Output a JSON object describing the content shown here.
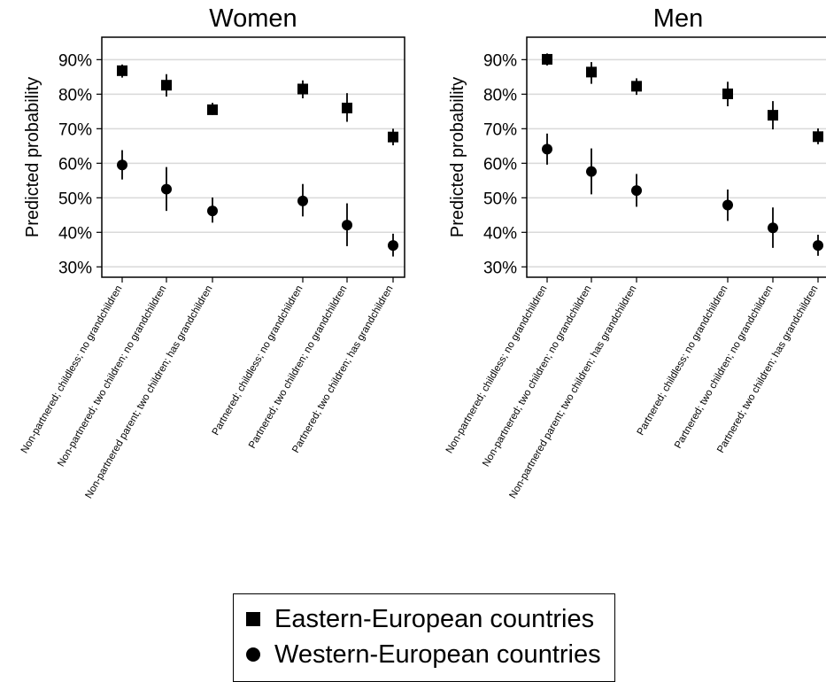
{
  "chart_data": [
    {
      "type": "scatter",
      "title": "Women",
      "ylabel": "Predicted probability",
      "ylim": [
        0.27,
        0.965
      ],
      "yticks": [
        "30%",
        "40%",
        "50%",
        "60%",
        "70%",
        "80%",
        "90%"
      ],
      "categories": [
        "Non-partnered; childless; no grandchildren",
        "Non-partnered; two children; no grandchildren",
        "Non-partnered parent; two children; has grandchildren",
        "Partnered; childless; no grandchildren",
        "Partnered; two children; no grandchildren",
        "Partnered; two children; has grandchildren"
      ],
      "grid": true,
      "series": [
        {
          "name": "Eastern-European countries",
          "marker": "square",
          "values": [
            0.868,
            0.826,
            0.755,
            0.815,
            0.76,
            0.676
          ],
          "ci_low": [
            0.848,
            0.793,
            0.74,
            0.788,
            0.72,
            0.652
          ],
          "ci_high": [
            0.886,
            0.858,
            0.775,
            0.84,
            0.803,
            0.7
          ]
        },
        {
          "name": "Western-European countries",
          "marker": "circle",
          "values": [
            0.595,
            0.525,
            0.462,
            0.491,
            0.421,
            0.362
          ],
          "ci_low": [
            0.553,
            0.462,
            0.428,
            0.446,
            0.36,
            0.33
          ],
          "ci_high": [
            0.638,
            0.589,
            0.501,
            0.54,
            0.484,
            0.396
          ]
        }
      ]
    },
    {
      "type": "scatter",
      "title": "Men",
      "ylabel": "Predicted probability",
      "ylim": [
        0.27,
        0.965
      ],
      "yticks": [
        "30%",
        "40%",
        "50%",
        "60%",
        "70%",
        "80%",
        "90%"
      ],
      "categories": [
        "Non-partnered; childless; no grandchildren",
        "Non-partnered; two children; no grandchildren",
        "Non-partnered parent; two children; has grandchildren",
        "Partnered; childless; no grandchildren",
        "Partnered; two children; no grandchildren",
        "Partnered; two children; has grandchildren"
      ],
      "grid": true,
      "series": [
        {
          "name": "Eastern-European countries",
          "marker": "square",
          "values": [
            0.901,
            0.864,
            0.823,
            0.801,
            0.739,
            0.677
          ],
          "ci_low": [
            0.883,
            0.83,
            0.798,
            0.765,
            0.698,
            0.655
          ],
          "ci_high": [
            0.918,
            0.893,
            0.846,
            0.836,
            0.78,
            0.701
          ]
        },
        {
          "name": "Western-European countries",
          "marker": "circle",
          "values": [
            0.641,
            0.576,
            0.521,
            0.479,
            0.413,
            0.362
          ],
          "ci_low": [
            0.596,
            0.51,
            0.474,
            0.433,
            0.355,
            0.332
          ],
          "ci_high": [
            0.686,
            0.643,
            0.569,
            0.524,
            0.472,
            0.393
          ]
        }
      ]
    }
  ],
  "legend": {
    "items": [
      {
        "label": "Eastern-European countries",
        "marker": "square"
      },
      {
        "label": "Western-European countries",
        "marker": "circle"
      }
    ]
  }
}
